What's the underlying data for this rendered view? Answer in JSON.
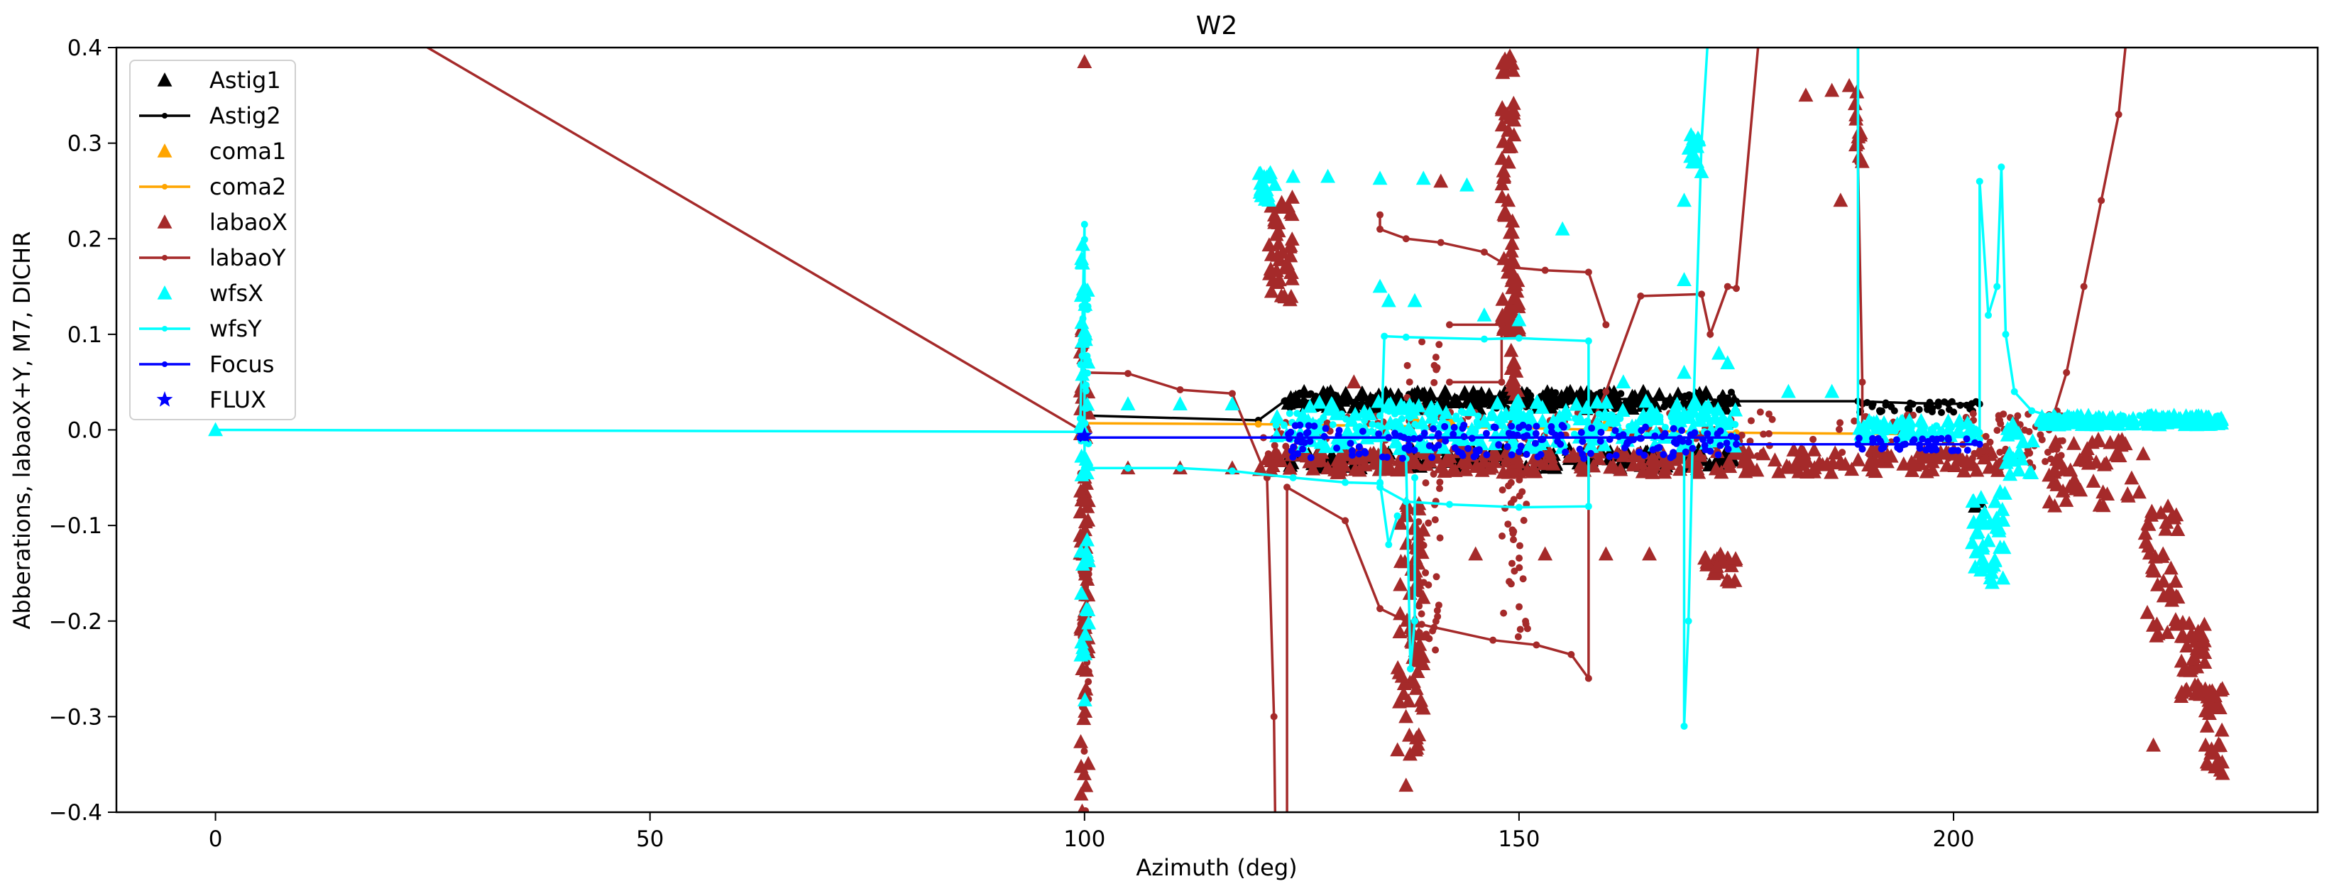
{
  "chart_data": {
    "type": "line",
    "title": "W2",
    "xlabel": "Azimuth (deg)",
    "ylabel": "Abberations, labaoX+Y, M7, DICHR",
    "xlim": [
      -11.4,
      241.9
    ],
    "ylim": [
      -0.4,
      0.4
    ],
    "xticks": [
      0,
      50,
      100,
      150,
      200
    ],
    "xtick_labels": [
      "0",
      "50",
      "100",
      "150",
      "200"
    ],
    "yticks": [
      -0.4,
      -0.3,
      -0.2,
      -0.1,
      0.0,
      0.1,
      0.2,
      0.3,
      0.4
    ],
    "ytick_labels": [
      "−0.4",
      "−0.3",
      "−0.2",
      "−0.1",
      "0.0",
      "0.1",
      "0.2",
      "0.3",
      "0.4"
    ],
    "grid": false,
    "legend_position": "upper-left",
    "series": [
      {
        "name": "Astig1",
        "color": "#000000",
        "marker": "triangle",
        "line": false,
        "points": [
          [
            202.5,
            -0.08
          ],
          [
            203,
            -0.075
          ]
        ],
        "bands": [
          {
            "x": [
              123,
              175
            ],
            "y": [
              0.022,
              0.04
            ],
            "n": 160
          },
          {
            "x": [
              123,
              175
            ],
            "y": [
              -0.04,
              -0.02
            ],
            "n": 120
          }
        ]
      },
      {
        "name": "Astig2",
        "color": "#000000",
        "marker": "dot",
        "line": true,
        "points": [
          [
            100,
            0.015
          ],
          [
            120,
            0.01
          ],
          [
            123,
            0.03
          ],
          [
            130,
            0.031
          ],
          [
            140,
            0.033
          ],
          [
            150,
            0.03
          ],
          [
            160,
            0.032
          ],
          [
            170,
            0.033
          ],
          [
            175,
            0.03
          ],
          [
            189,
            0.03
          ],
          [
            195,
            0.028
          ],
          [
            203,
            0.027
          ]
        ],
        "bands": [
          {
            "x": [
              123,
              175
            ],
            "y": [
              0.022,
              0.04
            ],
            "n": 140
          },
          {
            "x": [
              189,
              203
            ],
            "y": [
              0.018,
              0.03
            ],
            "n": 40
          }
        ]
      },
      {
        "name": "coma1",
        "color": "#ffa500",
        "marker": "triangle",
        "line": false,
        "points": [
          [
            138,
            0.012
          ],
          [
            142,
            0.01
          ],
          [
            150,
            0.008
          ],
          [
            160,
            0.006
          ]
        ],
        "bands": []
      },
      {
        "name": "coma2",
        "color": "#ffa500",
        "marker": "dot",
        "line": true,
        "points": [
          [
            100,
            0.007
          ],
          [
            120,
            0.006
          ],
          [
            150,
            0.002
          ],
          [
            175,
            -0.003
          ],
          [
            190,
            -0.004
          ],
          [
            203,
            -0.005
          ]
        ],
        "bands": []
      },
      {
        "name": "labaoX",
        "color": "#a52a2a",
        "marker": "triangle",
        "line": false,
        "points": [
          [
            100,
            0.385
          ],
          [
            141,
            0.26
          ],
          [
            137,
            -0.372
          ],
          [
            145,
            -0.13
          ],
          [
            153,
            -0.13
          ],
          [
            165,
            -0.13
          ],
          [
            160,
            -0.13
          ],
          [
            183,
            0.35
          ],
          [
            187,
            0.24
          ],
          [
            186,
            0.355
          ],
          [
            188,
            0.36
          ],
          [
            105,
            -0.04
          ],
          [
            111,
            -0.04
          ],
          [
            117,
            -0.04
          ],
          [
            131,
            0.05
          ],
          [
            128,
            -0.04
          ],
          [
            223,
            -0.33
          ],
          [
            229,
            -0.33
          ]
        ],
        "bands": [
          {
            "x": [
              99.5,
              100.5
            ],
            "y": [
              -0.4,
              0.12
            ],
            "n": 70
          },
          {
            "x": [
              121,
              124
            ],
            "y": [
              0.13,
              0.25
            ],
            "n": 40
          },
          {
            "x": [
              148,
              149.5
            ],
            "y": [
              0.1,
              0.4
            ],
            "n": 60
          },
          {
            "x": [
              149,
              150
            ],
            "y": [
              -0.05,
              0.16
            ],
            "n": 40
          },
          {
            "x": [
              136,
              139
            ],
            "y": [
              -0.34,
              -0.05
            ],
            "n": 70
          },
          {
            "x": [
              188.5,
              189.5
            ],
            "y": [
              0.28,
              0.36
            ],
            "n": 12
          },
          {
            "x": [
              120,
              206
            ],
            "y": [
              -0.045,
              -0.02
            ],
            "n": 260
          },
          {
            "x": [
              171,
              175
            ],
            "y": [
              -0.16,
              -0.13
            ],
            "n": 20
          },
          {
            "x": [
              211,
              222
            ],
            "y": [
              -0.08,
              -0.01
            ],
            "n": 50
          },
          {
            "x": [
              222,
              226
            ],
            "y": [
              -0.22,
              -0.08
            ],
            "n": 40
          },
          {
            "x": [
              226,
              229
            ],
            "y": [
              -0.28,
              -0.2
            ],
            "n": 40
          },
          {
            "x": [
              229,
              231
            ],
            "y": [
              -0.36,
              -0.27
            ],
            "n": 30
          }
        ]
      },
      {
        "name": "labaoY",
        "color": "#a52a2a",
        "marker": "dot",
        "line": true,
        "points": [
          [
            0,
            0.53
          ],
          [
            99.5,
            0.0
          ],
          [
            100,
            0.06
          ],
          [
            105,
            0.059
          ],
          [
            111,
            0.042
          ],
          [
            117,
            0.038
          ],
          [
            121,
            -0.05
          ],
          [
            121.8,
            -0.3
          ],
          [
            122,
            -0.45
          ],
          [
            123.3,
            -0.45
          ],
          [
            123.3,
            -0.06
          ],
          [
            130,
            -0.095
          ],
          [
            134,
            -0.187
          ],
          [
            137,
            -0.2
          ],
          [
            147,
            -0.22
          ],
          [
            152,
            -0.225
          ],
          [
            156,
            -0.235
          ],
          [
            158,
            -0.26
          ],
          [
            158,
            0.0
          ],
          [
            160,
            0.04
          ],
          [
            164,
            0.14
          ],
          [
            171,
            0.142
          ],
          [
            172,
            0.1
          ],
          [
            174,
            0.15
          ],
          [
            175,
            0.148
          ],
          [
            178,
            0.45
          ]
        ],
        "segments": [
          [
            [
              134,
              0.225
            ],
            [
              134,
              0.21
            ],
            [
              137,
              0.2
            ],
            [
              141,
              0.196
            ],
            [
              146,
              0.186
            ],
            [
              149,
              0.17
            ],
            [
              153,
              0.167
            ],
            [
              158,
              0.165
            ],
            [
              160,
              0.11
            ]
          ],
          [
            [
              142,
              0.11
            ],
            [
              148,
              0.11
            ],
            [
              148,
              0.05
            ],
            [
              142,
              0.05
            ]
          ],
          [
            [
              189,
              0.45
            ],
            [
              189,
              0.28
            ],
            [
              189.5,
              0.05
            ],
            [
              189.5,
              -0.02
            ]
          ],
          [
            [
              211,
              0.0
            ],
            [
              213,
              0.06
            ],
            [
              215,
              0.15
            ],
            [
              217,
              0.24
            ],
            [
              219,
              0.33
            ],
            [
              220,
              0.42
            ]
          ]
        ],
        "bands": [
          {
            "x": [
              99.5,
              100.5
            ],
            "y": [
              -0.4,
              0.1
            ],
            "n": 40
          },
          {
            "x": [
              137,
              141
            ],
            "y": [
              -0.25,
              0.1
            ],
            "n": 60
          },
          {
            "x": [
              148,
              151
            ],
            "y": [
              -0.22,
              0.0
            ],
            "n": 40
          },
          {
            "x": [
              120,
              206
            ],
            "y": [
              -0.03,
              0.02
            ],
            "n": 160
          },
          {
            "x": [
              205,
              213
            ],
            "y": [
              -0.04,
              0.02
            ],
            "n": 50
          }
        ]
      },
      {
        "name": "wfsX",
        "color": "#00ffff",
        "marker": "triangle",
        "line": false,
        "points": [
          [
            0,
            0.0
          ],
          [
            105,
            0.027
          ],
          [
            111,
            0.027
          ],
          [
            117,
            0.027
          ],
          [
            124,
            0.265
          ],
          [
            128,
            0.265
          ],
          [
            134,
            0.263
          ],
          [
            139,
            0.263
          ],
          [
            144,
            0.256
          ],
          [
            134,
            0.15
          ],
          [
            135,
            0.135
          ],
          [
            138,
            0.135
          ],
          [
            146,
            0.12
          ],
          [
            150,
            0.115
          ],
          [
            155,
            0.21
          ],
          [
            162,
            0.05
          ],
          [
            169,
            0.06
          ],
          [
            169,
            0.24
          ],
          [
            170,
            0.3
          ],
          [
            171,
            0.27
          ],
          [
            173,
            0.08
          ],
          [
            181,
            0.04
          ],
          [
            186,
            0.04
          ],
          [
            169,
            0.157
          ],
          [
            174,
            0.07
          ]
        ],
        "bands": [
          {
            "x": [
              99.5,
              100.5
            ],
            "y": [
              -0.3,
              0.2
            ],
            "n": 40
          },
          {
            "x": [
              120,
              122
            ],
            "y": [
              0.24,
              0.27
            ],
            "n": 20
          },
          {
            "x": [
              169.5,
              171
            ],
            "y": [
              0.27,
              0.31
            ],
            "n": 15
          },
          {
            "x": [
              122,
              175
            ],
            "y": [
              -0.02,
              0.03
            ],
            "n": 200
          },
          {
            "x": [
              189,
              203
            ],
            "y": [
              -0.01,
              0.01
            ],
            "n": 40
          },
          {
            "x": [
              202,
              206
            ],
            "y": [
              -0.16,
              -0.06
            ],
            "n": 40
          },
          {
            "x": [
              206,
              210
            ],
            "y": [
              -0.06,
              0.01
            ],
            "n": 20
          },
          {
            "x": [
              210,
              231
            ],
            "y": [
              0.005,
              0.015
            ],
            "n": 140
          }
        ]
      },
      {
        "name": "wfsY",
        "color": "#00ffff",
        "marker": "dot",
        "line": true,
        "points": [
          [
            0,
            0.0
          ],
          [
            99.5,
            -0.002
          ],
          [
            100,
            0.215
          ],
          [
            100,
            -0.04
          ],
          [
            105,
            -0.04
          ],
          [
            111,
            -0.04
          ],
          [
            117,
            -0.043
          ],
          [
            124,
            -0.05
          ],
          [
            130,
            -0.055
          ],
          [
            134,
            -0.056
          ],
          [
            134.5,
            0.098
          ],
          [
            137,
            0.097
          ],
          [
            146,
            0.095
          ],
          [
            150,
            0.096
          ],
          [
            158,
            0.093
          ],
          [
            158,
            -0.08
          ],
          [
            150,
            -0.081
          ],
          [
            142,
            -0.078
          ],
          [
            137,
            -0.075
          ],
          [
            134,
            -0.06
          ]
        ],
        "segments": [
          [
            [
              134,
              -0.055
            ],
            [
              135,
              -0.12
            ],
            [
              136,
              -0.09
            ]
          ],
          [
            [
              137,
              -0.03
            ],
            [
              137.5,
              -0.25
            ],
            [
              138,
              -0.2
            ],
            [
              138,
              -0.05
            ]
          ],
          [
            [
              169,
              -0.01
            ],
            [
              169,
              -0.31
            ],
            [
              169.5,
              -0.2
            ],
            [
              170,
              0.0
            ],
            [
              171,
              0.3
            ],
            [
              172,
              0.45
            ]
          ],
          [
            [
              189,
              -0.01
            ],
            [
              189,
              0.45
            ]
          ],
          [
            [
              203,
              -0.01
            ],
            [
              203,
              0.26
            ],
            [
              204,
              0.12
            ],
            [
              205,
              0.15
            ],
            [
              205.5,
              0.275
            ],
            [
              206,
              0.1
            ],
            [
              207,
              0.04
            ],
            [
              209,
              0.02
            ],
            [
              211,
              0.015
            ]
          ]
        ],
        "bands": [
          {
            "x": [
              99.5,
              100.5
            ],
            "y": [
              -0.04,
              0.2
            ],
            "n": 30
          },
          {
            "x": [
              122,
              175
            ],
            "y": [
              -0.01,
              0.02
            ],
            "n": 160
          },
          {
            "x": [
              189,
              203
            ],
            "y": [
              -0.01,
              0.005
            ],
            "n": 40
          },
          {
            "x": [
              210,
              231
            ],
            "y": [
              0.005,
              0.015
            ],
            "n": 120
          }
        ]
      },
      {
        "name": "Focus",
        "color": "#0000ff",
        "marker": "dot",
        "line": true,
        "points": [
          [
            99.5,
            -0.008
          ],
          [
            100,
            -0.008
          ],
          [
            135,
            -0.008
          ],
          [
            175,
            -0.008
          ],
          [
            175,
            -0.015
          ],
          [
            189,
            -0.015
          ],
          [
            203,
            -0.015
          ]
        ],
        "bands": [
          {
            "x": [
              123,
              175
            ],
            "y": [
              -0.03,
              0.005
            ],
            "n": 170
          },
          {
            "x": [
              189,
              203
            ],
            "y": [
              -0.022,
              -0.008
            ],
            "n": 40
          }
        ]
      },
      {
        "name": "FLUX",
        "color": "#0000ff",
        "marker": "star",
        "line": false,
        "points": [
          [
            100,
            -0.006
          ]
        ],
        "bands": []
      }
    ]
  }
}
